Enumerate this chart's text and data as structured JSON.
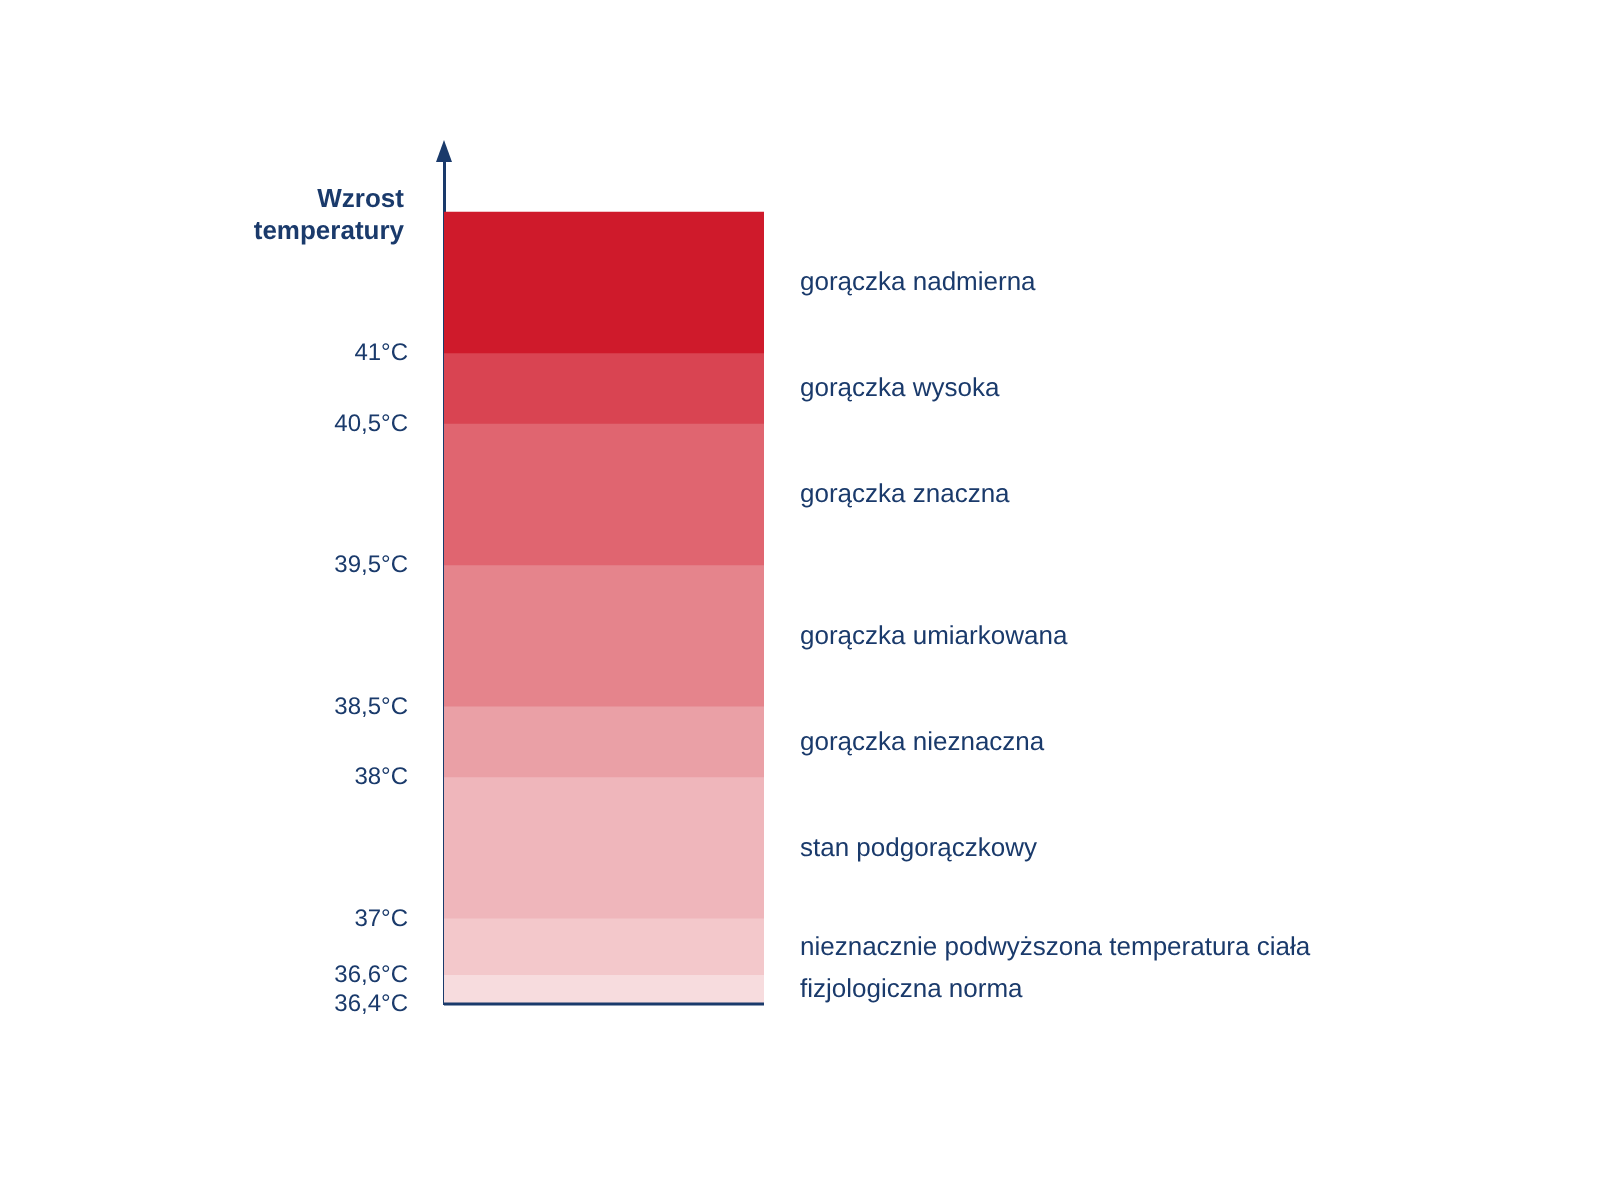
{
  "chart_data": {
    "type": "bar",
    "legend": false,
    "ylabel": "Wzrost temperatury",
    "categories": [
      null
    ],
    "ylim": [
      36.4,
      42.4
    ],
    "yticks": [
      {
        "value": 36.4,
        "label": "36,4°C"
      },
      {
        "value": 36.6,
        "label": "36,6°C"
      },
      {
        "value": 37,
        "label": "37°C"
      },
      {
        "value": 38,
        "label": "38°C"
      },
      {
        "value": 38.5,
        "label": "38,5°C"
      },
      {
        "value": 39.5,
        "label": "39,5°C"
      },
      {
        "value": 40.5,
        "label": "40,5°C"
      },
      {
        "value": 41,
        "label": "41°C"
      }
    ],
    "series": [
      {
        "name": "fizjologiczna norma",
        "color": "#f7dcde",
        "base": [
          36.4
        ],
        "values": [
          0.2
        ]
      },
      {
        "name": "nieznacznie podwyższona temperatura ciała",
        "color": "#f3c8cb",
        "base": [
          36.6
        ],
        "values": [
          0.4
        ]
      },
      {
        "name": "stan podgorączkowy",
        "color": "#efb6bb",
        "base": [
          37
        ],
        "values": [
          1
        ]
      },
      {
        "name": "gorączka nieznaczna",
        "color": "#eaa0a6",
        "base": [
          38
        ],
        "values": [
          0.5
        ]
      },
      {
        "name": "gorączka umiarkowana",
        "color": "#e5848c",
        "base": [
          38.5
        ],
        "values": [
          1
        ]
      },
      {
        "name": "gorączka znaczna",
        "color": "#e06570",
        "base": [
          39.5
        ],
        "values": [
          1
        ]
      },
      {
        "name": "gorączka wysoka",
        "color": "#d94452",
        "base": [
          40.5
        ],
        "values": [
          0.5
        ]
      },
      {
        "name": "gorączka nadmierna",
        "color": "#cf1a2b",
        "base": [
          41
        ],
        "values": [
          1
        ]
      }
    ]
  }
}
